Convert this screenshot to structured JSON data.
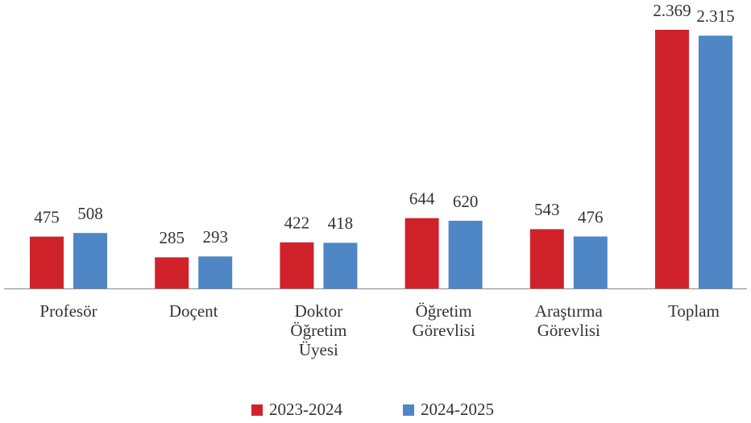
{
  "chart_data": {
    "type": "bar",
    "categories": [
      "Profesör",
      "Doçent",
      "Doktor Öğretim Üyesi",
      "Öğretim Görevlisi",
      "Araştırma Görevlisi",
      "Toplam"
    ],
    "series": [
      {
        "name": "2023-2024",
        "color": "#d0222b",
        "values": [
          475,
          285,
          422,
          644,
          543,
          2369
        ],
        "value_labels": [
          "475",
          "285",
          "422",
          "644",
          "543",
          "2.369"
        ]
      },
      {
        "name": "2024-2025",
        "color": "#4f86c6",
        "values": [
          508,
          293,
          418,
          620,
          476,
          2315
        ],
        "value_labels": [
          "508",
          "293",
          "418",
          "620",
          "476",
          "2.315"
        ]
      }
    ],
    "legend": "bottom"
  }
}
